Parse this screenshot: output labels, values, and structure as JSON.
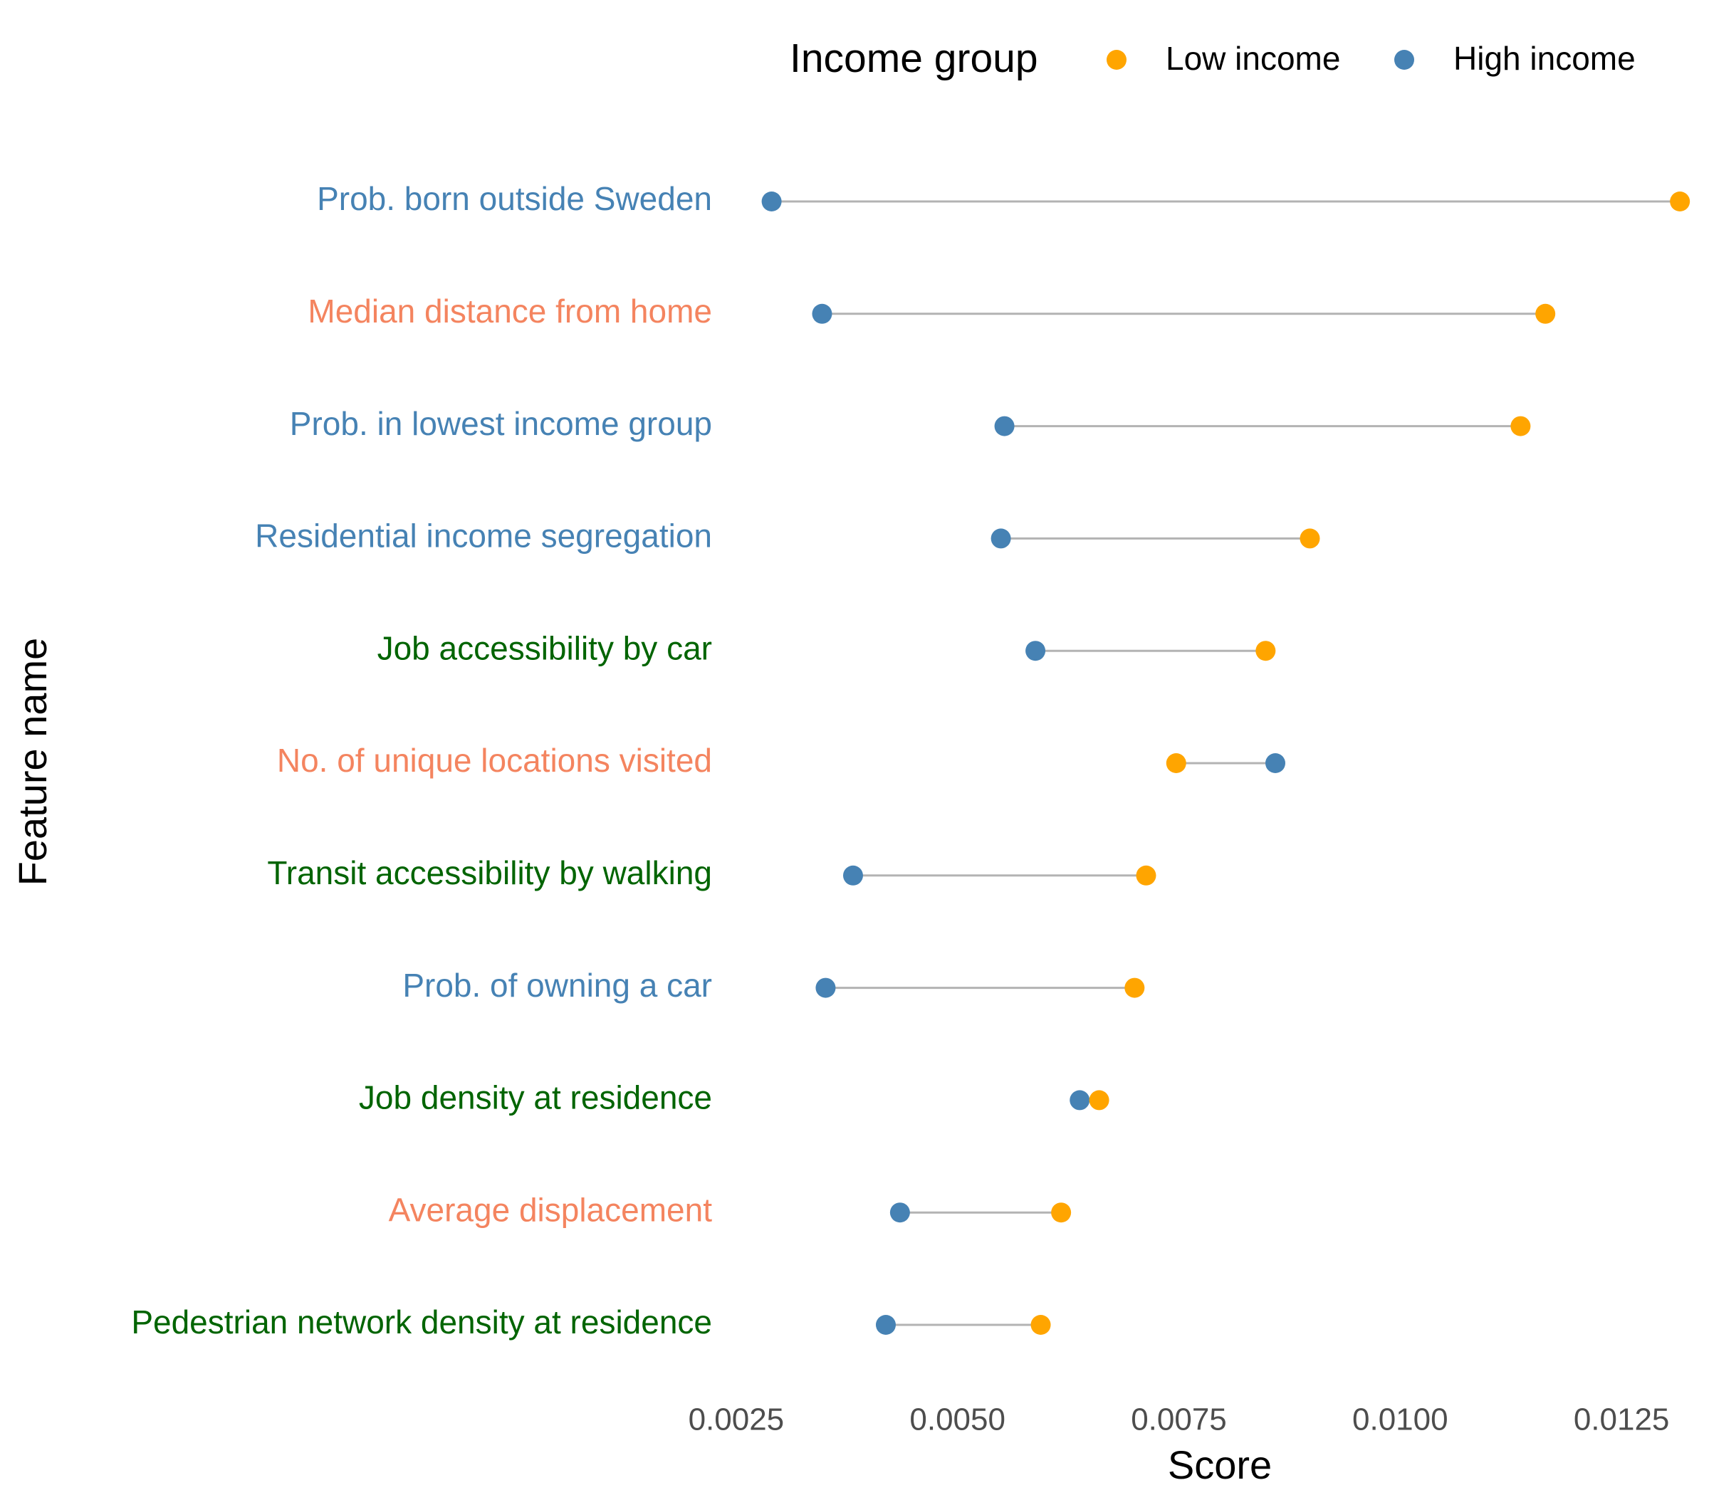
{
  "chart_data": {
    "type": "dumbbell",
    "x_label": "Score",
    "y_label": "Feature name",
    "legend_title": "Income group",
    "legend_position": "top-right",
    "categories": [
      "Prob. born outside Sweden",
      "Median distance from home",
      "Prob. in lowest income group",
      "Residential income segregation",
      "Job accessibility by car",
      "No. of unique locations visited",
      "Transit accessibility by walking",
      "Prob. of owning a car",
      "Job density at residence",
      "Average displacement",
      "Pedestrian network density at residence"
    ],
    "category_colors": [
      "#4682b4",
      "#f4845f",
      "#4682b4",
      "#4682b4",
      "#006400",
      "#f4845f",
      "#006400",
      "#4682b4",
      "#006400",
      "#f4845f",
      "#006400"
    ],
    "series": [
      {
        "name": "Low income",
        "color": "#ffa500",
        "values": [
          0.01316,
          0.01164,
          0.01136,
          0.00898,
          0.00848,
          0.00747,
          0.00713,
          0.007,
          0.0066,
          0.00617,
          0.00594
        ]
      },
      {
        "name": "High income",
        "color": "#4682b4",
        "values": [
          0.0029,
          0.00347,
          0.00553,
          0.00549,
          0.00588,
          0.00859,
          0.00382,
          0.00351,
          0.00638,
          0.00435,
          0.00419
        ]
      }
    ],
    "connector_color": "#b3b3b3",
    "xlim": [
      0.0023,
      0.0134
    ],
    "xticks": [
      0.0025,
      {
        "value": 0.005,
        "label": "0.0050"
      },
      0.0075,
      {
        "value": 0.01,
        "label": "0.0100"
      },
      0.0125
    ],
    "grid": false
  }
}
